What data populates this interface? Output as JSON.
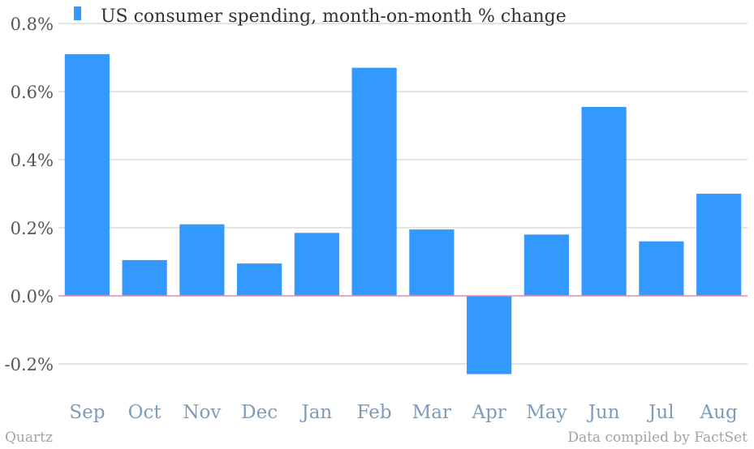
{
  "chart_data": {
    "type": "bar",
    "categories": [
      "Sep",
      "Oct",
      "Nov",
      "Dec",
      "Jan",
      "Feb",
      "Mar",
      "Apr",
      "May",
      "Jun",
      "Jul",
      "Aug"
    ],
    "series": [
      {
        "name": "US consumer spending, month-on-month % change",
        "values": [
          0.71,
          0.105,
          0.21,
          0.095,
          0.185,
          0.67,
          0.195,
          -0.23,
          0.18,
          0.555,
          0.16,
          0.3
        ]
      }
    ],
    "yticks": [
      "0.8%",
      "0.6%",
      "0.4%",
      "0.2%",
      "0.0%",
      "-0.2%"
    ],
    "ytick_values": [
      0.8,
      0.6,
      0.4,
      0.2,
      0.0,
      -0.2
    ],
    "ylim": [
      -0.3,
      0.8
    ],
    "grid": true,
    "legend": "top-left",
    "colors": {
      "bar": "#3399ff",
      "zero_line": "#e88aa8",
      "grid": "#c8c8c8"
    }
  },
  "footer": {
    "left": "Quartz",
    "right": "Data compiled by FactSet"
  }
}
